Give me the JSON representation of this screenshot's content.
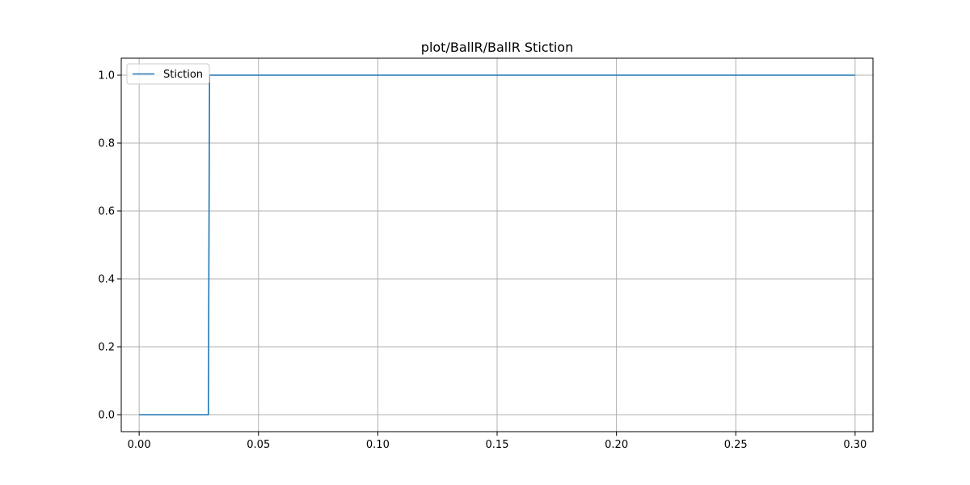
{
  "chart_data": {
    "type": "line",
    "title": "plot/BallR/BallR Stiction",
    "xlabel": "",
    "ylabel": "",
    "xlim": [
      -0.0075,
      0.3075
    ],
    "ylim": [
      -0.05,
      1.05
    ],
    "x_ticks": [
      0.0,
      0.05,
      0.1,
      0.15,
      0.2,
      0.25,
      0.3
    ],
    "x_tick_labels": [
      "0.00",
      "0.05",
      "0.10",
      "0.15",
      "0.20",
      "0.25",
      "0.30"
    ],
    "y_ticks": [
      0.0,
      0.2,
      0.4,
      0.6,
      0.8,
      1.0
    ],
    "y_tick_labels": [
      "0.0",
      "0.2",
      "0.4",
      "0.6",
      "0.8",
      "1.0"
    ],
    "grid": true,
    "legend_position": "top-left",
    "series": [
      {
        "name": "Stiction",
        "color": "#1f77b4",
        "x": [
          0.0,
          0.029,
          0.0295,
          0.3
        ],
        "y": [
          0.0,
          0.0,
          1.0,
          1.0
        ]
      }
    ]
  }
}
